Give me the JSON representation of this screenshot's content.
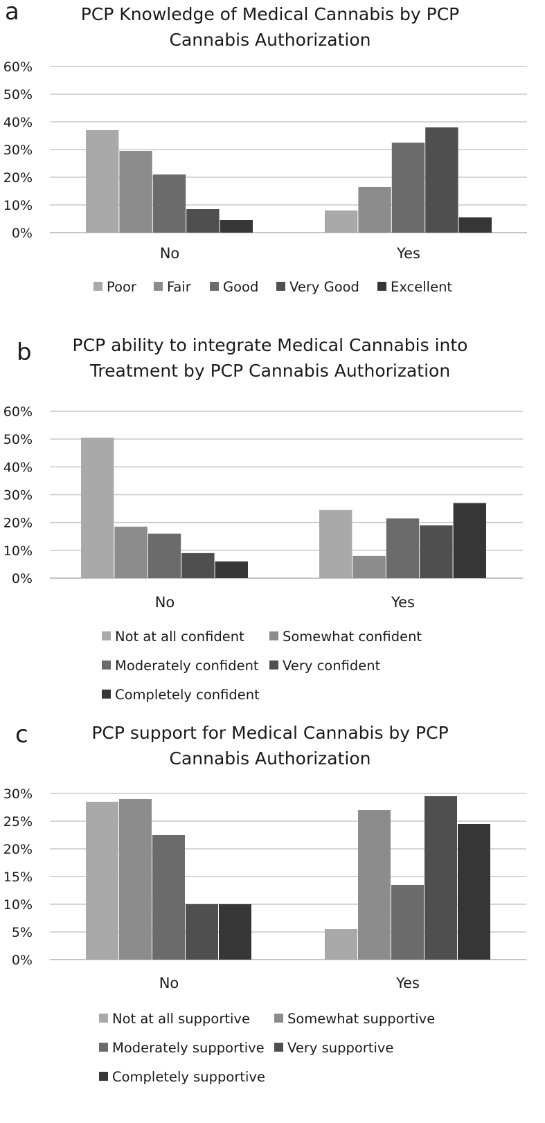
{
  "chart_data": [
    {
      "type": "bar",
      "panel": "a",
      "title_line1": "PCP Knowledge of Medical Cannabis by PCP",
      "title_line2": "Cannabis Authorization",
      "categories": [
        "No",
        "Yes"
      ],
      "yticks": [
        "0%",
        "10%",
        "20%",
        "30%",
        "40%",
        "50%",
        "60%"
      ],
      "ylim": [
        0,
        60
      ],
      "grid": true,
      "legend_position": "bottom",
      "series": [
        {
          "name": "Poor",
          "values": [
            37,
            8
          ],
          "color": "#a9a9a9"
        },
        {
          "name": "Fair",
          "values": [
            29.5,
            16.5
          ],
          "color": "#8c8c8c"
        },
        {
          "name": "Good",
          "values": [
            21,
            32.5
          ],
          "color": "#6b6b6b"
        },
        {
          "name": "Very Good",
          "values": [
            8.5,
            38
          ],
          "color": "#4f4f4f"
        },
        {
          "name": "Excellent",
          "values": [
            4.5,
            5.5
          ],
          "color": "#363636"
        }
      ]
    },
    {
      "type": "bar",
      "panel": "b",
      "title_line1": "PCP ability to integrate Medical Cannabis into",
      "title_line2": "Treatment by PCP Cannabis Authorization",
      "categories": [
        "No",
        "Yes"
      ],
      "yticks": [
        "0%",
        "10%",
        "20%",
        "30%",
        "40%",
        "50%",
        "60%"
      ],
      "ylim": [
        0,
        60
      ],
      "grid": true,
      "legend_position": "bottom",
      "series": [
        {
          "name": "Not at all confident",
          "values": [
            50.5,
            24.5
          ],
          "color": "#a9a9a9"
        },
        {
          "name": "Somewhat confident",
          "values": [
            18.5,
            8
          ],
          "color": "#8c8c8c"
        },
        {
          "name": "Moderately confident",
          "values": [
            16,
            21.5
          ],
          "color": "#6b6b6b"
        },
        {
          "name": "Very confident",
          "values": [
            9,
            19
          ],
          "color": "#4f4f4f"
        },
        {
          "name": "Completely confident",
          "values": [
            6,
            27
          ],
          "color": "#363636"
        }
      ]
    },
    {
      "type": "bar",
      "panel": "c",
      "title_line1": "PCP support for Medical Cannabis  by PCP",
      "title_line2": "Cannabis Authorization",
      "categories": [
        "No",
        "Yes"
      ],
      "yticks": [
        "0%",
        "5%",
        "10%",
        "15%",
        "20%",
        "25%",
        "30%"
      ],
      "ylim": [
        0,
        30
      ],
      "grid": true,
      "legend_position": "bottom",
      "series": [
        {
          "name": "Not at all supportive",
          "values": [
            28.5,
            5.5
          ],
          "color": "#a9a9a9"
        },
        {
          "name": "Somewhat supportive",
          "values": [
            29,
            27
          ],
          "color": "#8c8c8c"
        },
        {
          "name": "Moderately supportive",
          "values": [
            22.5,
            13.5
          ],
          "color": "#6b6b6b"
        },
        {
          "name": "Very supportive",
          "values": [
            10,
            29.5
          ],
          "color": "#4f4f4f"
        },
        {
          "name": "Completely supportive",
          "values": [
            10,
            24.5
          ],
          "color": "#363636"
        }
      ]
    }
  ]
}
